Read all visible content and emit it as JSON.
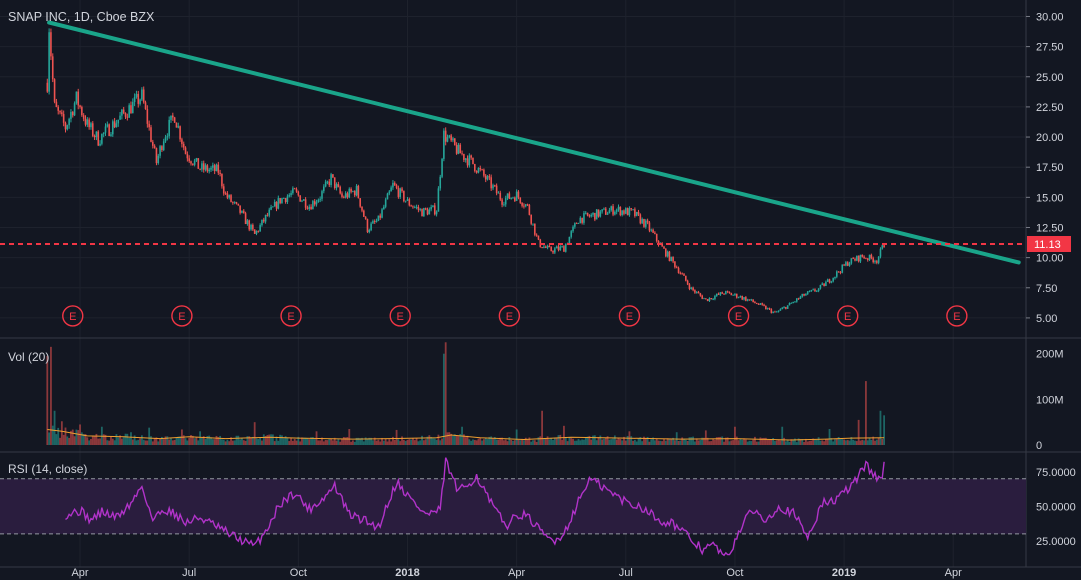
{
  "header": {
    "symbol_title": "SNAP INC, 1D, Cboe BZX"
  },
  "colors": {
    "background": "#131722",
    "grid": "#1e222d",
    "up_candle": "#26a69a",
    "down_candle": "#ef5350",
    "trendline": "#1aa58a",
    "last_price_line": "#f23645",
    "volume_ma": "#f0a030",
    "rsi_line": "#b133c9",
    "rsi_band": "#2a1d3e",
    "earnings_marker": "#f23645"
  },
  "panes": {
    "volume_label": "Vol (20)",
    "rsi_label": "RSI (14, close)"
  },
  "chart_data": {
    "type": "candlestick",
    "price_axis": {
      "ticks": [
        "30.00",
        "27.50",
        "25.00",
        "22.50",
        "20.00",
        "17.50",
        "15.00",
        "12.50",
        "10.00",
        "7.50",
        "5.00"
      ],
      "ylim": [
        3.5,
        31.2
      ]
    },
    "volume_axis": {
      "ticks": [
        "200M",
        "100M",
        "0"
      ],
      "ylim": [
        0,
        230
      ]
    },
    "rsi_axis": {
      "ticks": [
        "75.0000",
        "50.0000",
        "25.0000"
      ],
      "ylim": [
        6,
        88
      ],
      "band": [
        30,
        70
      ]
    },
    "time_axis": {
      "ticks": [
        {
          "label": "Apr",
          "m": 3
        },
        {
          "label": "Jul",
          "m": 6
        },
        {
          "label": "Oct",
          "m": 9
        },
        {
          "label": "2018",
          "m": 12
        },
        {
          "label": "Apr",
          "m": 15
        },
        {
          "label": "Jul",
          "m": 18
        },
        {
          "label": "Oct",
          "m": 21
        },
        {
          "label": "2019",
          "m": 24
        },
        {
          "label": "Apr",
          "m": 27
        }
      ],
      "range_months": [
        0.8,
        29.0
      ]
    },
    "price_anchors": [
      [
        2.1,
        24.5
      ],
      [
        2.15,
        29.2
      ],
      [
        2.3,
        22.5
      ],
      [
        2.6,
        20.8
      ],
      [
        2.9,
        23.2
      ],
      [
        3.2,
        21.0
      ],
      [
        3.5,
        19.8
      ],
      [
        3.9,
        21.0
      ],
      [
        4.3,
        22.2
      ],
      [
        4.7,
        23.4
      ],
      [
        5.1,
        17.9
      ],
      [
        5.3,
        20.0
      ],
      [
        5.6,
        21.8
      ],
      [
        5.9,
        18.7
      ],
      [
        6.3,
        17.4
      ],
      [
        6.8,
        17.2
      ],
      [
        7.0,
        15.2
      ],
      [
        7.4,
        13.8
      ],
      [
        7.8,
        11.9
      ],
      [
        8.1,
        13.3
      ],
      [
        8.5,
        14.8
      ],
      [
        8.9,
        15.4
      ],
      [
        9.3,
        14.3
      ],
      [
        9.6,
        15.1
      ],
      [
        9.9,
        16.6
      ],
      [
        10.2,
        15.0
      ],
      [
        10.6,
        15.6
      ],
      [
        10.9,
        12.4
      ],
      [
        11.2,
        13.1
      ],
      [
        11.6,
        16.0
      ],
      [
        12.0,
        14.6
      ],
      [
        12.4,
        13.8
      ],
      [
        12.8,
        14.0
      ],
      [
        13.0,
        20.2
      ],
      [
        13.4,
        18.8
      ],
      [
        13.8,
        17.8
      ],
      [
        14.2,
        16.4
      ],
      [
        14.6,
        14.8
      ],
      [
        15.0,
        15.2
      ],
      [
        15.3,
        14.2
      ],
      [
        15.6,
        11.2
      ],
      [
        15.9,
        10.6
      ],
      [
        16.3,
        10.8
      ],
      [
        16.7,
        13.2
      ],
      [
        17.2,
        13.6
      ],
      [
        17.7,
        14.0
      ],
      [
        18.2,
        13.7
      ],
      [
        18.6,
        12.6
      ],
      [
        19.0,
        10.8
      ],
      [
        19.4,
        9.2
      ],
      [
        19.8,
        7.4
      ],
      [
        20.2,
        6.5
      ],
      [
        20.7,
        7.1
      ],
      [
        21.1,
        6.8
      ],
      [
        21.6,
        6.2
      ],
      [
        22.1,
        5.4
      ],
      [
        22.5,
        6.1
      ],
      [
        22.9,
        6.9
      ],
      [
        23.3,
        7.4
      ],
      [
        23.7,
        8.4
      ],
      [
        24.1,
        9.6
      ],
      [
        24.5,
        10.1
      ],
      [
        24.9,
        9.8
      ],
      [
        25.1,
        11.1
      ]
    ],
    "volume_ma_anchors": [
      [
        2.1,
        34
      ],
      [
        2.5,
        30
      ],
      [
        3.2,
        20
      ],
      [
        4.2,
        18
      ],
      [
        5.2,
        14
      ],
      [
        6.0,
        18
      ],
      [
        7.0,
        14
      ],
      [
        8.2,
        17
      ],
      [
        9.0,
        15
      ],
      [
        10.5,
        13
      ],
      [
        11.5,
        14
      ],
      [
        12.8,
        16
      ],
      [
        13.2,
        22
      ],
      [
        14.0,
        16
      ],
      [
        15.2,
        12
      ],
      [
        16.5,
        17
      ],
      [
        18.0,
        15
      ],
      [
        19.5,
        13
      ],
      [
        21.0,
        14
      ],
      [
        22.5,
        11
      ],
      [
        23.5,
        13
      ],
      [
        24.2,
        15
      ],
      [
        25.1,
        16
      ]
    ],
    "volume_spikes": [
      [
        2.12,
        195
      ],
      [
        2.18,
        215
      ],
      [
        2.3,
        75
      ],
      [
        2.5,
        52
      ],
      [
        3.0,
        45
      ],
      [
        3.6,
        40
      ],
      [
        4.4,
        28
      ],
      [
        4.9,
        38
      ],
      [
        5.8,
        34
      ],
      [
        6.3,
        30
      ],
      [
        7.8,
        50
      ],
      [
        9.5,
        30
      ],
      [
        10.4,
        35
      ],
      [
        11.7,
        33
      ],
      [
        12.98,
        200
      ],
      [
        13.05,
        225
      ],
      [
        13.5,
        40
      ],
      [
        15.0,
        34
      ],
      [
        15.7,
        75
      ],
      [
        16.3,
        42
      ],
      [
        18.1,
        30
      ],
      [
        19.4,
        28
      ],
      [
        20.2,
        32
      ],
      [
        21.0,
        40
      ],
      [
        22.3,
        40
      ],
      [
        23.6,
        35
      ],
      [
        24.4,
        55
      ],
      [
        24.6,
        140
      ],
      [
        25.0,
        75
      ],
      [
        25.1,
        65
      ]
    ],
    "rsi_anchors": [
      [
        2.6,
        44
      ],
      [
        3.0,
        47
      ],
      [
        3.3,
        40
      ],
      [
        3.6,
        46
      ],
      [
        4.0,
        42
      ],
      [
        4.4,
        52
      ],
      [
        4.7,
        65
      ],
      [
        5.0,
        40
      ],
      [
        5.3,
        48
      ],
      [
        5.6,
        45
      ],
      [
        5.9,
        38
      ],
      [
        6.3,
        42
      ],
      [
        6.7,
        36
      ],
      [
        7.1,
        30
      ],
      [
        7.4,
        26
      ],
      [
        7.8,
        21
      ],
      [
        8.1,
        32
      ],
      [
        8.5,
        52
      ],
      [
        8.9,
        60
      ],
      [
        9.3,
        48
      ],
      [
        9.7,
        56
      ],
      [
        10.0,
        65
      ],
      [
        10.4,
        44
      ],
      [
        10.8,
        40
      ],
      [
        11.2,
        35
      ],
      [
        11.7,
        68
      ],
      [
        12.1,
        55
      ],
      [
        12.5,
        44
      ],
      [
        12.9,
        47
      ],
      [
        13.05,
        83
      ],
      [
        13.4,
        60
      ],
      [
        13.9,
        72
      ],
      [
        14.3,
        52
      ],
      [
        14.7,
        36
      ],
      [
        15.1,
        45
      ],
      [
        15.4,
        40
      ],
      [
        15.7,
        30
      ],
      [
        16.0,
        25
      ],
      [
        16.3,
        30
      ],
      [
        16.6,
        48
      ],
      [
        17.0,
        70
      ],
      [
        17.3,
        65
      ],
      [
        17.7,
        58
      ],
      [
        18.1,
        52
      ],
      [
        18.5,
        49
      ],
      [
        18.9,
        40
      ],
      [
        19.3,
        38
      ],
      [
        19.7,
        28
      ],
      [
        20.1,
        19
      ],
      [
        20.4,
        22
      ],
      [
        20.8,
        12
      ],
      [
        21.1,
        32
      ],
      [
        21.5,
        48
      ],
      [
        21.8,
        40
      ],
      [
        22.2,
        50
      ],
      [
        22.6,
        45
      ],
      [
        23.0,
        28
      ],
      [
        23.4,
        52
      ],
      [
        23.8,
        55
      ],
      [
        24.2,
        65
      ],
      [
        24.6,
        80
      ],
      [
        25.0,
        68
      ],
      [
        25.1,
        80
      ]
    ],
    "trendline": {
      "from": [
        2.15,
        29.5
      ],
      "to": [
        28.8,
        9.6
      ]
    },
    "last_price": {
      "value": 11.13,
      "label": "11.13"
    },
    "earnings_markers": {
      "label": "E",
      "months": [
        2.8,
        5.8,
        8.8,
        11.8,
        14.8,
        18.1,
        21.1,
        24.1,
        27.1
      ],
      "price_level": 5.0
    }
  }
}
